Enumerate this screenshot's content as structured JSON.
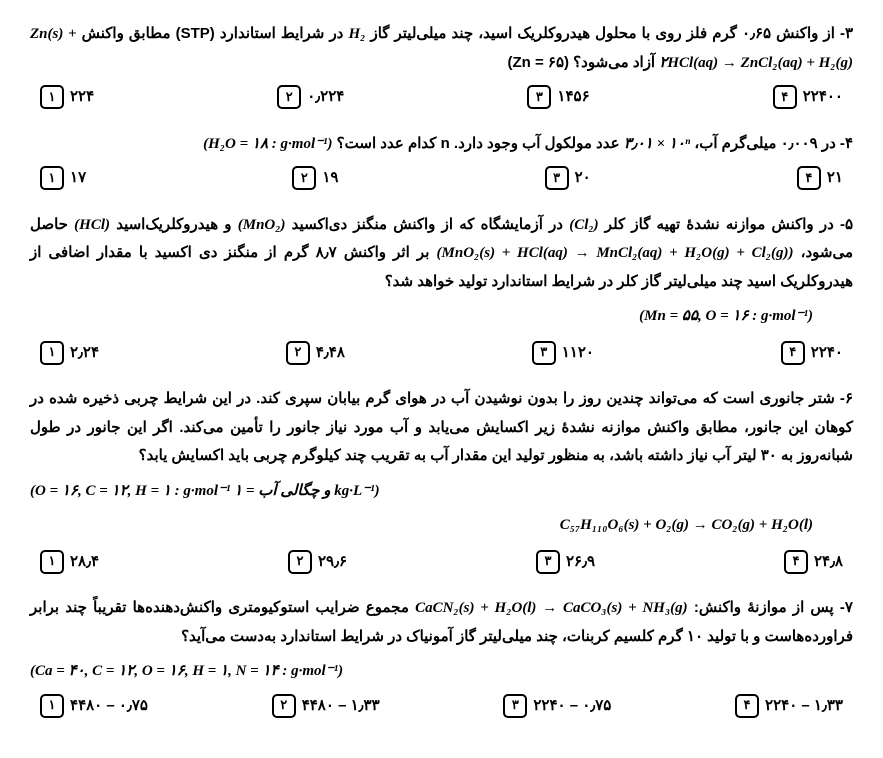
{
  "q3": {
    "text_a": "۳- از واکنش ۰٫۶۵ گرم فلز روی با محلول هیدروکلریک اسید، چند میلی‌لیتر گاز ",
    "gas": "H₂",
    "text_b": " در شرایط استاندارد (STP) مطابق واکنش",
    "formula": "Zn(s) + ۲HCl(aq) → ZnCl₂(aq) + H₂(g)",
    "tail": " آزاد می‌شود؟ (Zn = ۶۵)",
    "opts": {
      "1": "۲۲۴",
      "2": "۰٫۲۲۴",
      "3": "۱۴۵۶",
      "4": "۲۲۴۰۰"
    }
  },
  "q4": {
    "text_a": "۴- در ۰٫۰۰۹ میلی‌گرم آب، ",
    "mid": "۳٫۰۱ × ۱۰ⁿ",
    "text_b": " عدد مولکول آب وجود دارد. n کدام عدد است؟ ",
    "note": "(H₂O = ۱۸ : g·mol⁻¹)",
    "opts": {
      "1": "۱۷",
      "2": "۱۹",
      "3": "۲۰",
      "4": "۲۱"
    }
  },
  "q5": {
    "line1_a": "۵- در واکنش موازنه نشدهٔ تهیه گاز کلر ",
    "cl2": "(Cl₂)",
    "line1_b": " در آزمایشگاه که از واکنش منگنز دی‌اکسید ",
    "mno2": "(MnO₂)",
    "line1_c": " و هیدروکلریک‌اسید ",
    "hcl": "(HCl)",
    "line1_d": " حاصل می‌شود،",
    "formula": "(MnO₂(s) + HCl(aq) → MnCl₂(aq) + H₂O(g) + Cl₂(g))",
    "line2": " بر اثر واکنش ۸٫۷ گرم از منگنز دی اکسید با مقدار اضافی از هیدروکلریک اسید چند میلی‌لیتر گاز کلر در شرایط استاندارد تولید خواهد شد؟",
    "note": "(Mn = ۵۵, O = ۱۶ : g·mol⁻¹)",
    "opts": {
      "1": "۲٫۲۴",
      "2": "۴٫۴۸",
      "3": "۱۱۲۰",
      "4": "۲۲۴۰"
    }
  },
  "q6": {
    "line1": "۶- شتر جانوری است که می‌تواند چندین روز را بدون نوشیدن آب در هوای گرم بیابان سپری کند. در این شرایط چربی ذخیره شده در کوهان این جانور، مطابق واکنش موازنه نشدهٔ زیر اکسایش می‌یابد و آب مورد نیاز جانور را تأمین می‌کند. اگر این جانور در طول شبانه‌روز به ۳۰ لیتر آب نیاز داشته باشد، به منظور تولید این مقدار آب به تقریب چند کیلوگرم چربی باید اکسایش یابد؟",
    "note": "(O = ۱۶, C = ۱۲, H = ۱ : g·mol⁻¹ و چگالی آب = ۱ kg·L⁻¹)",
    "formula": "C₅₇H₁₁₀O₆(s) + O₂(g) → CO₂(g) + H₂O(l)",
    "opts": {
      "1": "۲۸٫۴",
      "2": "۲۹٫۶",
      "3": "۲۶٫۹",
      "4": "۲۴٫۸"
    }
  },
  "q7": {
    "text_a": "۷- پس از موازنهٔ واکنش: ",
    "formula_inline": "CaCN₂(s) + H₂O(l) → CaCO₃(s) + NH₃(g)",
    "text_b": " مجموع ضرایب استوکیومتری واکنش‌دهنده‌ها تقریباً چند برابر فراورده‌هاست و با تولید ۱۰ گرم کلسیم کربنات، چند میلی‌لیتر گاز آمونیاک در شرایط استاندارد به‌دست می‌آید؟",
    "note": "(Ca = ۴۰, C = ۱۲, O = ۱۶, H = ۱, N = ۱۴ : g·mol⁻¹)",
    "opts": {
      "1": "۴۴۸۰ – ۰٫۷۵",
      "2": "۴۴۸۰ – ۱٫۳۳",
      "3": "۲۲۴۰ – ۰٫۷۵",
      "4": "۲۲۴۰ – ۱٫۳۳"
    }
  },
  "labels": {
    "1": "۱",
    "2": "۲",
    "3": "۳",
    "4": "۴"
  }
}
